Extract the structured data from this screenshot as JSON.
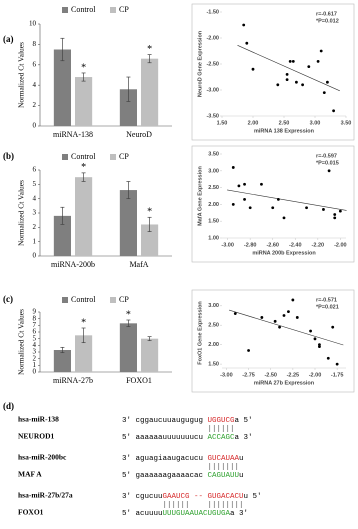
{
  "panel_labels": [
    "(a)",
    "(b)",
    "(c)",
    "(d)"
  ],
  "chart_data": [
    {
      "type": "bar",
      "y_label": "Normalized Ct Values",
      "categories": [
        "miRNA-138",
        "NeuroD"
      ],
      "series": [
        {
          "name": "Control",
          "color": "#7f7f7f",
          "values": [
            7.5,
            3.6
          ],
          "errors": [
            1.1,
            1.2
          ],
          "marks": [
            null,
            null
          ]
        },
        {
          "name": "CP",
          "color": "#bfbfbf",
          "values": [
            4.8,
            6.6
          ],
          "errors": [
            0.4,
            0.4
          ],
          "marks": [
            "*",
            "*"
          ]
        }
      ],
      "ylim": [
        0,
        10
      ],
      "yticks": [
        0,
        2,
        4,
        6,
        8,
        10
      ]
    },
    {
      "type": "scatter",
      "x_label": "miRNA 138 Expression",
      "y_label": "NeuroD Gene Expression",
      "annotations": [
        "r=-0.617",
        "*P=0.012"
      ],
      "trendline": true,
      "color": "#000000",
      "x": [
        1.85,
        1.9,
        2.0,
        2.4,
        2.55,
        2.55,
        2.6,
        2.65,
        2.7,
        2.8,
        2.9,
        3.05,
        3.1,
        3.15,
        3.2,
        3.3
      ],
      "values": [
        -1.75,
        -2.1,
        -2.6,
        -2.9,
        -2.7,
        -2.8,
        -2.45,
        -2.45,
        -2.85,
        -2.9,
        -2.55,
        -2.45,
        -2.25,
        -3.05,
        -2.85,
        -3.4
      ],
      "xlim": [
        1.5,
        3.5
      ],
      "xticks": [
        {
          "value": 1.5,
          "label": "1.50"
        },
        {
          "value": 2,
          "label": "2.00"
        },
        {
          "value": 2.5,
          "label": "2.50"
        },
        {
          "value": 3,
          "label": "3.00"
        },
        {
          "value": 3.5,
          "label": "3.50"
        }
      ],
      "ylim": [
        -3.5,
        -1.5
      ],
      "yticks": [
        {
          "value": -1.5,
          "label": "-1.50"
        },
        {
          "value": -2,
          "label": "-2.00"
        },
        {
          "value": -2.5,
          "label": "-2.50"
        },
        {
          "value": -3,
          "label": "-3.00"
        },
        {
          "value": -3.5,
          "label": "-3.50"
        }
      ]
    },
    {
      "type": "bar",
      "y_label": "Normalized Ct Values",
      "categories": [
        "miRNA-200b",
        "MafA"
      ],
      "series": [
        {
          "name": "Control",
          "color": "#7f7f7f",
          "values": [
            2.8,
            4.6
          ],
          "errors": [
            0.6,
            0.6
          ],
          "marks": [
            null,
            null
          ]
        },
        {
          "name": "CP",
          "color": "#bfbfbf",
          "values": [
            5.5,
            2.2
          ],
          "errors": [
            0.3,
            0.5
          ],
          "marks": [
            "*",
            "*"
          ]
        }
      ],
      "ylim": [
        0,
        6
      ],
      "yticks": [
        0,
        1,
        2,
        3,
        4,
        5,
        6
      ]
    },
    {
      "type": "scatter",
      "x_label": "miRNA 200b Expression",
      "y_label": "MafA Gene Expression",
      "annotations": [
        "r=-0.597",
        "*P=0.015"
      ],
      "trendline": true,
      "color": "#000000",
      "x": [
        -2.95,
        -2.95,
        -2.9,
        -2.85,
        -2.85,
        -2.8,
        -2.7,
        -2.6,
        -2.55,
        -2.5,
        -2.3,
        -2.15,
        -2.1,
        -2.05,
        -2.05,
        -2.0
      ],
      "values": [
        3.1,
        2.0,
        2.55,
        2.6,
        2.15,
        1.9,
        2.6,
        1.9,
        2.15,
        1.6,
        1.9,
        1.85,
        3.0,
        1.6,
        1.7,
        1.8
      ],
      "xlim": [
        -3.05,
        -1.95
      ],
      "xticks": [
        {
          "value": -3,
          "label": "-3.00"
        },
        {
          "value": -2.8,
          "label": "-2.80"
        },
        {
          "value": -2.6,
          "label": "-2.60"
        },
        {
          "value": -2.4,
          "label": "-2.40"
        },
        {
          "value": -2.2,
          "label": "-2.20"
        },
        {
          "value": -2,
          "label": "-2.00"
        }
      ],
      "ylim": [
        1,
        3.5
      ],
      "yticks": [
        {
          "value": 1,
          "label": "1.00"
        },
        {
          "value": 1.5,
          "label": "1.50"
        },
        {
          "value": 2,
          "label": "2.00"
        },
        {
          "value": 2.5,
          "label": "2.50"
        },
        {
          "value": 3,
          "label": "3.00"
        },
        {
          "value": 3.5,
          "label": "3.50"
        }
      ]
    },
    {
      "type": "bar",
      "y_label": "Normalized Ct Values",
      "categories": [
        "miRNA-27b",
        "FOXO1"
      ],
      "series": [
        {
          "name": "Control",
          "color": "#7f7f7f",
          "values": [
            3.3,
            7.3
          ],
          "errors": [
            0.4,
            0.5
          ],
          "marks": [
            null,
            "*"
          ]
        },
        {
          "name": "CP",
          "color": "#bfbfbf",
          "values": [
            5.5,
            5.0
          ],
          "errors": [
            1.1,
            0.3
          ],
          "marks": [
            "*",
            null
          ]
        }
      ],
      "ylim": [
        0,
        9
      ],
      "yticks": [
        0,
        1,
        2,
        3,
        4,
        5,
        6,
        7,
        8,
        9
      ]
    },
    {
      "type": "scatter",
      "x_label": "miRNA 27b Expression",
      "y_label": "FoxO1 Gene Expression",
      "annotations": [
        "r=-0.571",
        "*P=0.021"
      ],
      "trendline": true,
      "color": "#000000",
      "x": [
        -2.9,
        -2.75,
        -2.6,
        -2.45,
        -2.4,
        -2.35,
        -2.3,
        -2.25,
        -2.2,
        -2.05,
        -2.0,
        -1.95,
        -1.95,
        -1.85,
        -1.8,
        -1.75
      ],
      "values": [
        2.8,
        1.85,
        2.7,
        2.6,
        2.45,
        2.75,
        2.85,
        3.15,
        2.7,
        2.35,
        2.15,
        2.0,
        1.95,
        1.65,
        2.45,
        1.5
      ],
      "xlim": [
        -3.05,
        -1.65
      ],
      "xticks": [
        {
          "value": -3,
          "label": "-3.00"
        },
        {
          "value": -2.75,
          "label": "-2.75"
        },
        {
          "value": -2.5,
          "label": "-2.50"
        },
        {
          "value": -2.25,
          "label": "-2.25"
        },
        {
          "value": -2,
          "label": "-2.00"
        },
        {
          "value": -1.75,
          "label": "-1.75"
        }
      ],
      "ylim": [
        1.4,
        3.2
      ],
      "yticks": [
        {
          "value": 1.5,
          "label": "1.50"
        },
        {
          "value": 2,
          "label": "2.00"
        },
        {
          "value": 2.5,
          "label": "2.50"
        },
        {
          "value": 3,
          "label": "3.00"
        }
      ]
    }
  ],
  "alignment": {
    "rows": [
      {
        "name": "hsa-miR-138",
        "segments": [
          {
            "text": "3' cggaucuuaugugug ",
            "color": "#000000"
          },
          {
            "text": "UGGUCG",
            "color": "#d62728"
          },
          {
            "text": "a 5'",
            "color": "#000000"
          }
        ]
      },
      {
        "name": "NEUROD1",
        "segments": [
          {
            "text": "5' aaaaaauuuuuuucu ",
            "color": "#000000"
          },
          {
            "text": "ACCAGC",
            "color": "#2ca02c"
          },
          {
            "text": "a 3'",
            "color": "#000000"
          }
        ]
      },
      {
        "name": "hsa-miR-200bc",
        "segments": [
          {
            "text": "3' aguagiaaugacucu ",
            "color": "#000000"
          },
          {
            "text": "GUCAUAA",
            "color": "#d62728"
          },
          {
            "text": "u",
            "color": "#000000"
          }
        ]
      },
      {
        "name": "MAF A",
        "segments": [
          {
            "text": "5' gaaaaaagaaaacac ",
            "color": "#000000"
          },
          {
            "text": "CAGUAUU",
            "color": "#2ca02c"
          },
          {
            "text": "u",
            "color": "#000000"
          }
        ]
      },
      {
        "name": "hsa-miR-27b/27a",
        "segments": [
          {
            "text": "3' cgucuu",
            "color": "#000000"
          },
          {
            "text": "GAAUCG -- GUGACACU",
            "color": "#d62728"
          },
          {
            "text": "u 5'",
            "color": "#000000"
          }
        ]
      },
      {
        "name": "FOXO1",
        "segments": [
          {
            "text": "5' acuuuu",
            "color": "#000000"
          },
          {
            "text": "UUUGUAAUACUGUGA",
            "color": "#2ca02c"
          },
          {
            "text": "a 3'",
            "color": "#000000"
          }
        ]
      }
    ]
  }
}
